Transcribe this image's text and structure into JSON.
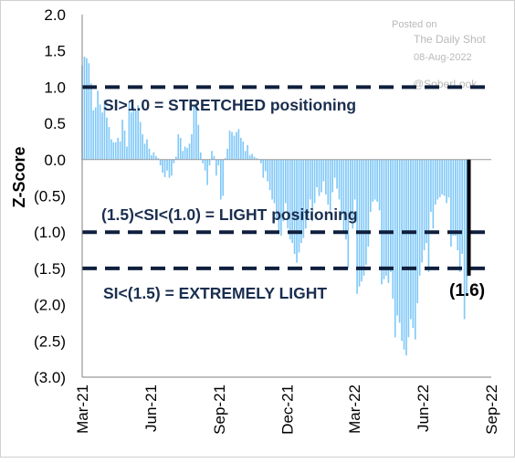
{
  "chart_data": {
    "type": "bar",
    "ylabel": "Z-Score",
    "ylim": [
      -3.0,
      2.0
    ],
    "yticks": [
      2.0,
      1.5,
      1.0,
      0.5,
      0.0,
      -0.5,
      -1.0,
      -1.5,
      -2.0,
      -2.5,
      -3.0
    ],
    "ytick_labels": [
      "2.0",
      "1.5",
      "1.0",
      "0.5",
      "0.0",
      "(0.5)",
      "(1.0)",
      "(1.5)",
      "(2.0)",
      "(2.5)",
      "(3.0)"
    ],
    "xlim": [
      "2021-03-01",
      "2022-09-01"
    ],
    "xticks": [
      "2021-03-01",
      "2021-06-01",
      "2021-09-01",
      "2021-12-01",
      "2022-03-01",
      "2022-06-01",
      "2022-09-01"
    ],
    "xtick_labels": [
      "Mar-21",
      "Jun-21",
      "Sep-21",
      "Dec-21",
      "Mar-22",
      "Jun-22",
      "Sep-22"
    ],
    "bar_color": "#7fc8f8",
    "bar_width_days": 2,
    "x": [
      "2021-03-01",
      "2021-03-04",
      "2021-03-07",
      "2021-03-10",
      "2021-03-13",
      "2021-03-16",
      "2021-03-19",
      "2021-03-22",
      "2021-03-25",
      "2021-03-28",
      "2021-03-31",
      "2021-04-03",
      "2021-04-06",
      "2021-04-09",
      "2021-04-12",
      "2021-04-15",
      "2021-04-18",
      "2021-04-21",
      "2021-04-24",
      "2021-04-27",
      "2021-04-30",
      "2021-05-03",
      "2021-05-06",
      "2021-05-09",
      "2021-05-12",
      "2021-05-15",
      "2021-05-18",
      "2021-05-21",
      "2021-05-24",
      "2021-05-27",
      "2021-05-30",
      "2021-06-02",
      "2021-06-05",
      "2021-06-08",
      "2021-06-11",
      "2021-06-14",
      "2021-06-17",
      "2021-06-20",
      "2021-06-23",
      "2021-06-26",
      "2021-06-29",
      "2021-07-02",
      "2021-07-05",
      "2021-07-08",
      "2021-07-11",
      "2021-07-14",
      "2021-07-17",
      "2021-07-20",
      "2021-07-23",
      "2021-07-26",
      "2021-07-29",
      "2021-08-01",
      "2021-08-04",
      "2021-08-07",
      "2021-08-10",
      "2021-08-13",
      "2021-08-16",
      "2021-08-19",
      "2021-08-22",
      "2021-08-25",
      "2021-08-28",
      "2021-08-31",
      "2021-09-03",
      "2021-09-06",
      "2021-09-09",
      "2021-09-12",
      "2021-09-15",
      "2021-09-18",
      "2021-09-21",
      "2021-09-24",
      "2021-09-27",
      "2021-09-30",
      "2021-10-03",
      "2021-10-06",
      "2021-10-09",
      "2021-10-12",
      "2021-10-15",
      "2021-10-18",
      "2021-10-21",
      "2021-10-24",
      "2021-10-27",
      "2021-10-30",
      "2021-11-02",
      "2021-11-05",
      "2021-11-08",
      "2021-11-11",
      "2021-11-14",
      "2021-11-17",
      "2021-11-20",
      "2021-11-23",
      "2021-11-26",
      "2021-11-29",
      "2021-12-02",
      "2021-12-05",
      "2021-12-08",
      "2021-12-11",
      "2021-12-14",
      "2021-12-17",
      "2021-12-20",
      "2021-12-23",
      "2021-12-26",
      "2021-12-29",
      "2022-01-01",
      "2022-01-04",
      "2022-01-07",
      "2022-01-10",
      "2022-01-13",
      "2022-01-16",
      "2022-01-19",
      "2022-01-22",
      "2022-01-25",
      "2022-01-28",
      "2022-01-31",
      "2022-02-03",
      "2022-02-06",
      "2022-02-09",
      "2022-02-12",
      "2022-02-15",
      "2022-02-18",
      "2022-02-21",
      "2022-02-24",
      "2022-02-27",
      "2022-03-02",
      "2022-03-05",
      "2022-03-08",
      "2022-03-11",
      "2022-03-14",
      "2022-03-17",
      "2022-03-20",
      "2022-03-23",
      "2022-03-26",
      "2022-03-29",
      "2022-04-01",
      "2022-04-04",
      "2022-04-07",
      "2022-04-10",
      "2022-04-13",
      "2022-04-16",
      "2022-04-19",
      "2022-04-22",
      "2022-04-25",
      "2022-04-28",
      "2022-05-01",
      "2022-05-04",
      "2022-05-07",
      "2022-05-10",
      "2022-05-13",
      "2022-05-16",
      "2022-05-19",
      "2022-05-22",
      "2022-05-25",
      "2022-05-28",
      "2022-05-31",
      "2022-06-03",
      "2022-06-06",
      "2022-06-09",
      "2022-06-12",
      "2022-06-15",
      "2022-06-18",
      "2022-06-21",
      "2022-06-24",
      "2022-06-27",
      "2022-06-30",
      "2022-07-03",
      "2022-07-06",
      "2022-07-09",
      "2022-07-12",
      "2022-07-15",
      "2022-07-18",
      "2022-07-21",
      "2022-07-24",
      "2022-07-27",
      "2022-07-30",
      "2022-08-02"
    ],
    "values": [
      1.3,
      1.42,
      1.4,
      1.33,
      1.05,
      0.68,
      0.72,
      0.95,
      0.76,
      0.65,
      0.82,
      0.58,
      0.45,
      0.28,
      0.24,
      0.24,
      0.3,
      0.25,
      0.55,
      0.4,
      0.18,
      0.78,
      0.65,
      0.72,
      0.68,
      0.75,
      0.52,
      0.35,
      0.22,
      0.28,
      0.15,
      0.06,
      0.1,
      0.05,
      0.02,
      -0.08,
      -0.18,
      -0.24,
      -0.15,
      -0.25,
      -0.22,
      -0.05,
      0.04,
      0.35,
      0.3,
      0.12,
      0.18,
      0.16,
      0.22,
      0.35,
      0.75,
      0.78,
      0.48,
      0.1,
      -0.05,
      -0.15,
      -0.35,
      -0.08,
      0.12,
      0.05,
      -0.22,
      -0.08,
      -0.55,
      -0.5,
      0.02,
      0.15,
      0.4,
      0.38,
      0.33,
      0.38,
      0.42,
      0.3,
      0.25,
      0.12,
      0.2,
      0.06,
      0.08,
      0.04,
      0.02,
      0.01,
      -0.05,
      -0.25,
      -0.16,
      -0.3,
      -0.42,
      -0.55,
      -0.6,
      -0.82,
      -1.0,
      -1.05,
      -0.85,
      -0.6,
      -0.95,
      -1.1,
      -1.15,
      -1.3,
      -1.42,
      -1.28,
      -1.15,
      -1.08,
      -0.95,
      -0.8,
      -0.55,
      -0.85,
      -0.6,
      -0.38,
      -0.5,
      -0.45,
      -0.3,
      -0.48,
      -0.62,
      -0.7,
      -0.45,
      -0.25,
      -0.4,
      -0.55,
      -0.75,
      -1.0,
      -1.1,
      -1.5,
      -0.78,
      -0.95,
      -0.55,
      -1.85,
      -1.75,
      -1.68,
      -1.6,
      -1.45,
      -1.2,
      -0.72,
      -0.58,
      -0.55,
      -0.58,
      -0.7,
      -1.72,
      -1.65,
      -1.6,
      -1.7,
      -1.55,
      -1.92,
      -2.45,
      -2.15,
      -2.25,
      -2.5,
      -2.62,
      -2.7,
      -2.45,
      -2.2,
      -2.32,
      -2.48,
      -1.98,
      -1.6,
      -1.42,
      -1.25,
      -1.15,
      -1.55,
      -0.72,
      -0.95,
      -0.62,
      -0.55,
      -0.52,
      -0.48,
      -0.5,
      -0.6,
      -0.52,
      -1.2,
      -1.05,
      -1.05,
      -1.25,
      -1.55,
      -1.3,
      -2.2,
      -1.85,
      -1.6
    ],
    "reference_lines": [
      1.0,
      -1.0,
      -1.5
    ],
    "marker": {
      "x": "2022-08-02",
      "y_from": 0.0,
      "y_to": -1.6
    },
    "annotations": [
      {
        "text": "SI>1.0 = STRETCHED positioning"
      },
      {
        "text": "(1.5)<SI<(1.0) = LIGHT positioning"
      },
      {
        "text": "SI<(1.5) = EXTREMELY LIGHT"
      }
    ],
    "callout": "(1.6)"
  },
  "watermark": {
    "posted_on": "Posted on",
    "source": "The Daily Shot",
    "date": "08-Aug-2022",
    "handle": "@SoberLook"
  },
  "colors": {
    "bars": "#7fc8f8",
    "reference_lines": "#0f1f3d",
    "annotation_text": "#1a2e4f",
    "marker": "#000000"
  }
}
